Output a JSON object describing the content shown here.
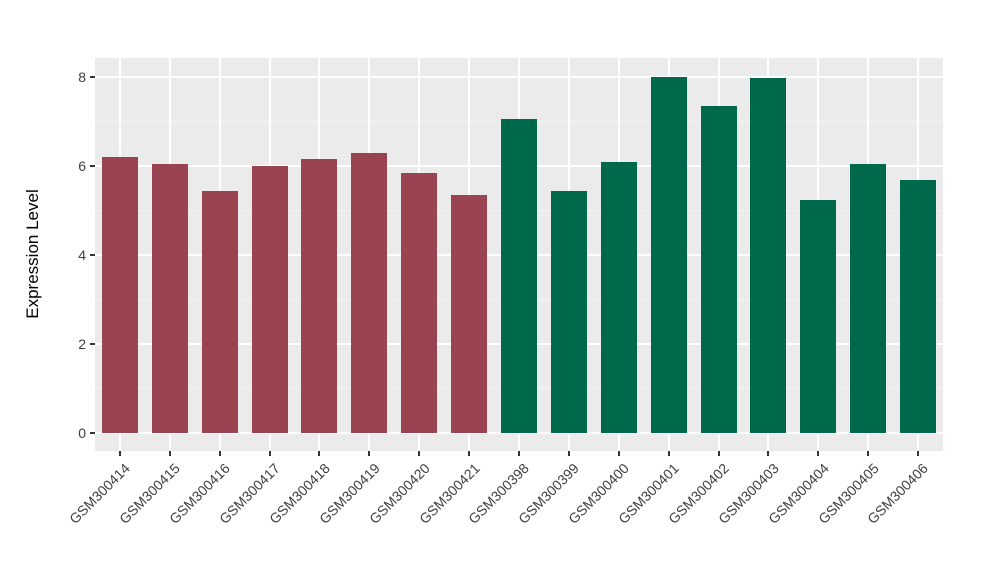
{
  "figure": {
    "background": "#FFFFFF",
    "panel_background": "#EBEBEB",
    "grid_major_color": "#FFFFFF",
    "grid_minor_color": "#F4F4F4",
    "tick_mark_color": "#333333",
    "axis_text_color": "#404040",
    "axis_title_color": "#000000"
  },
  "chart_data": {
    "type": "bar",
    "title": "",
    "xlabel": "",
    "ylabel": "Expression Level",
    "ylim": [
      -0.4,
      8.43
    ],
    "yticks_major": [
      0,
      2,
      4,
      6,
      8
    ],
    "yticks_minor": [
      1,
      3,
      5,
      7
    ],
    "grid": true,
    "legend": "none",
    "x_label_angle_deg": 45,
    "categories": [
      "GSM300414",
      "GSM300415",
      "GSM300416",
      "GSM300417",
      "GSM300418",
      "GSM300419",
      "GSM300420",
      "GSM300421",
      "GSM300398",
      "GSM300399",
      "GSM300400",
      "GSM300401",
      "GSM300402",
      "GSM300403",
      "GSM300404",
      "GSM300405",
      "GSM300406"
    ],
    "values": [
      6.2,
      6.05,
      5.45,
      6.0,
      6.15,
      6.3,
      5.85,
      5.35,
      7.05,
      5.45,
      6.1,
      8.0,
      7.35,
      7.97,
      5.25,
      6.05,
      5.7
    ],
    "groups": [
      "darkred",
      "darkred",
      "darkred",
      "darkred",
      "darkred",
      "darkred",
      "darkred",
      "darkred",
      "darkgreen",
      "darkgreen",
      "darkgreen",
      "darkgreen",
      "darkgreen",
      "darkgreen",
      "darkgreen",
      "darkgreen",
      "darkgreen"
    ],
    "group_colors": {
      "darkred": "#9A4351",
      "darkgreen": "#01694B"
    }
  }
}
